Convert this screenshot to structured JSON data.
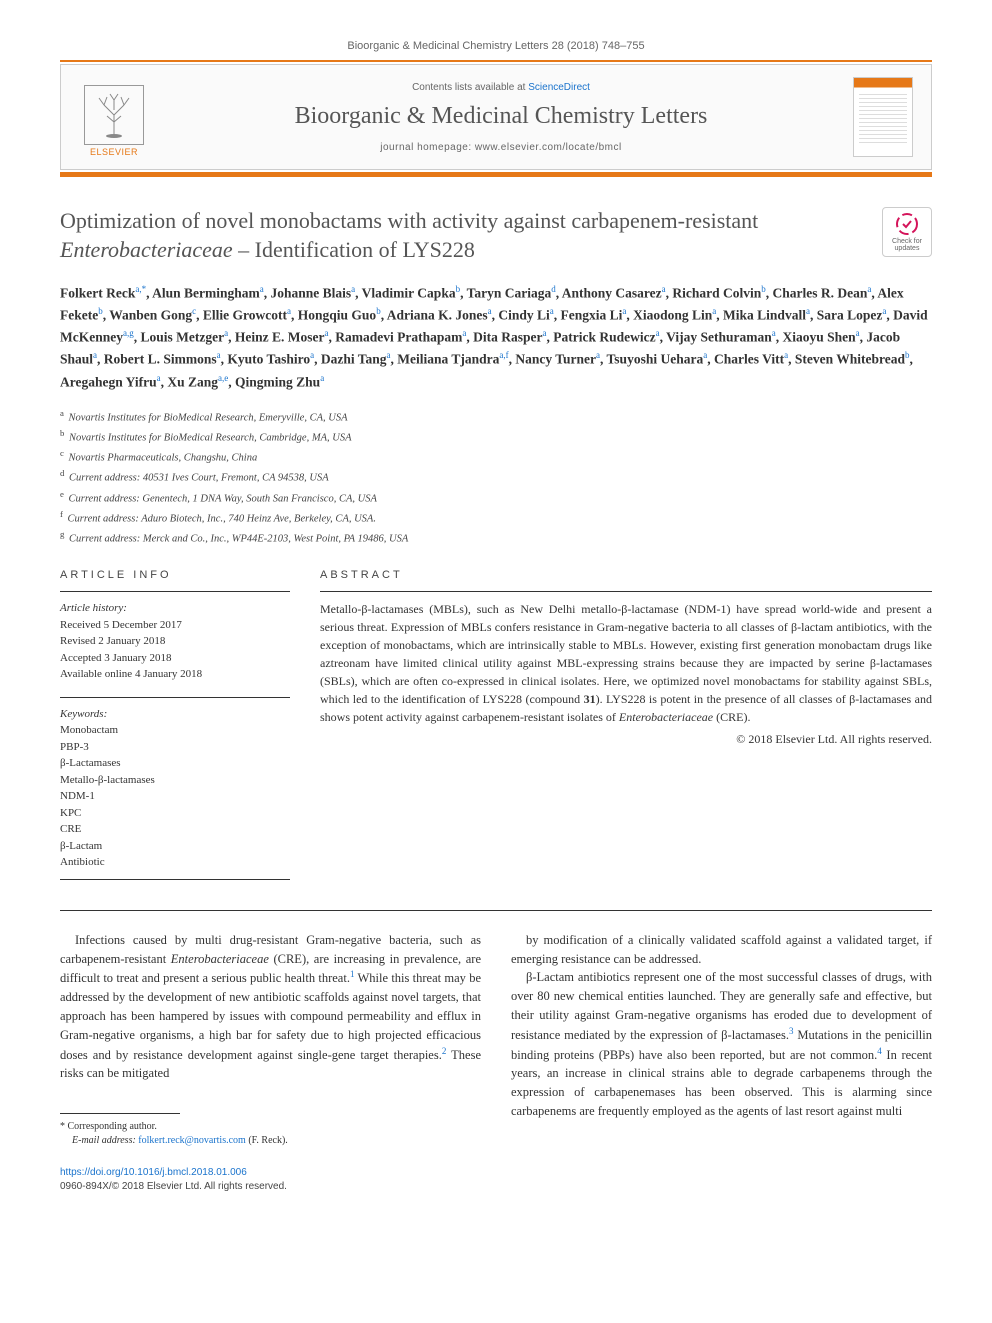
{
  "journal_ref": "Bioorganic & Medicinal Chemistry Letters 28 (2018) 748–755",
  "header": {
    "contents_prefix": "Contents lists available at ",
    "contents_link": "ScienceDirect",
    "journal_name": "Bioorganic & Medicinal Chemistry Letters",
    "homepage_label": "journal homepage: ",
    "homepage_url": "www.elsevier.com/locate/bmcl",
    "elsevier": "ELSEVIER"
  },
  "check_updates": "Check for updates",
  "title_html": "Optimization of novel monobactams with activity against carbapenem-resistant <em>Enterobacteriaceae</em> – Identification of LYS228",
  "authors_html": "Folkert Reck<sup>a,*</sup>, Alun Bermingham<sup>a</sup>, Johanne Blais<sup>a</sup>, Vladimir Capka<sup>b</sup>, Taryn Cariaga<sup>d</sup>, Anthony Casarez<sup>a</sup>, Richard Colvin<sup>b</sup>, Charles R. Dean<sup>a</sup>, Alex Fekete<sup>b</sup>, Wanben Gong<sup>c</sup>, Ellie Growcott<sup>a</sup>, Hongqiu Guo<sup>b</sup>, Adriana K. Jones<sup>a</sup>, Cindy Li<sup>a</sup>, Fengxia Li<sup>a</sup>, Xiaodong Lin<sup>a</sup>, Mika Lindvall<sup>a</sup>, Sara Lopez<sup>a</sup>, David McKenney<sup>a,g</sup>, Louis Metzger<sup>a</sup>, Heinz E. Moser<sup>a</sup>, Ramadevi Prathapam<sup>a</sup>, Dita Rasper<sup>a</sup>, Patrick Rudewicz<sup>a</sup>, Vijay Sethuraman<sup>a</sup>, Xiaoyu Shen<sup>a</sup>, Jacob Shaul<sup>a</sup>, Robert L. Simmons<sup>a</sup>, Kyuto Tashiro<sup>a</sup>, Dazhi Tang<sup>a</sup>, Meiliana Tjandra<sup>a,f</sup>, Nancy Turner<sup>a</sup>, Tsuyoshi Uehara<sup>a</sup>, Charles Vitt<sup>a</sup>, Steven Whitebread<sup>b</sup>, Aregahegn Yifru<sup>a</sup>, Xu Zang<sup>a,e</sup>, Qingming Zhu<sup>a</sup>",
  "affiliations": [
    {
      "sup": "a",
      "text": "Novartis Institutes for BioMedical Research, Emeryville, CA, USA"
    },
    {
      "sup": "b",
      "text": "Novartis Institutes for BioMedical Research, Cambridge, MA, USA"
    },
    {
      "sup": "c",
      "text": "Novartis Pharmaceuticals, Changshu, China"
    },
    {
      "sup": "d",
      "text": "Current address: 40531 Ives Court, Fremont, CA 94538, USA"
    },
    {
      "sup": "e",
      "text": "Current address: Genentech, 1 DNA Way, South San Francisco, CA, USA"
    },
    {
      "sup": "f",
      "text": "Current address: Aduro Biotech, Inc., 740 Heinz Ave, Berkeley, CA, USA."
    },
    {
      "sup": "g",
      "text": "Current address: Merck and Co., Inc., WP44E-2103, West Point, PA 19486, USA"
    }
  ],
  "info": {
    "heading": "ARTICLE INFO",
    "history_label": "Article history:",
    "history": [
      "Received 5 December 2017",
      "Revised 2 January 2018",
      "Accepted 3 January 2018",
      "Available online 4 January 2018"
    ],
    "keywords_label": "Keywords:",
    "keywords": [
      "Monobactam",
      "PBP-3",
      "β-Lactamases",
      "Metallo-β-lactamases",
      "NDM-1",
      "KPC",
      "CRE",
      "β-Lactam",
      "Antibiotic"
    ]
  },
  "abstract": {
    "heading": "ABSTRACT",
    "text_html": "Metallo-β-lactamases (MBLs), such as New Delhi metallo-β-lactamase (NDM-1) have spread world-wide and present a serious threat. Expression of MBLs confers resistance in Gram-negative bacteria to all classes of β-lactam antibiotics, with the exception of monobactams, which are intrinsically stable to MBLs. However, existing first generation monobactam drugs like aztreonam have limited clinical utility against MBL-expressing strains because they are impacted by serine β-lactamases (SBLs), which are often co-expressed in clinical isolates. Here, we optimized novel monobactams for stability against SBLs, which led to the identification of LYS228 (compound <b>31</b>). LYS228 is potent in the presence of all classes of β-lactamases and shows potent activity against carbapenem-resistant isolates of <em>Enterobacteriaceae</em> (CRE).",
    "copyright": "© 2018 Elsevier Ltd. All rights reserved."
  },
  "body": {
    "p1_html": "Infections caused by multi drug-resistant Gram-negative bacteria, such as carbapenem-resistant <em>Enterobacteriaceae</em> (CRE), are increasing in prevalence, are difficult to treat and present a serious public health threat.<sup>1</sup> While this threat may be addressed by the development of new antibiotic scaffolds against novel targets, that approach has been hampered by issues with compound permeability and efflux in Gram-negative organisms, a high bar for safety due to high projected efficacious doses and by resistance development against single-gene target therapies.<sup>2</sup> These risks can be mitigated",
    "p2_html": "by modification of a clinically validated scaffold against a validated target, if emerging resistance can be addressed.",
    "p3_html": "β-Lactam antibiotics represent one of the most successful classes of drugs, with over 80 new chemical entities launched. They are generally safe and effective, but their utility against Gram-negative organisms has eroded due to development of resistance mediated by the expression of β-lactamases.<sup>3</sup> Mutations in the penicillin binding proteins (PBPs) have also been reported, but are not common.<sup>4</sup> In recent years, an increase in clinical strains able to degrade carbapenems through the expression of carbapenemases has been observed. This is alarming since carbapenems are frequently employed as the agents of last resort against multi"
  },
  "footer": {
    "corresponding": "* Corresponding author.",
    "email_label": "E-mail address: ",
    "email": "folkert.reck@novartis.com",
    "email_suffix": " (F. Reck).",
    "doi": "https://doi.org/10.1016/j.bmcl.2018.01.006",
    "issn_line": "0960-894X/© 2018 Elsevier Ltd. All rights reserved."
  },
  "colors": {
    "orange": "#e67817",
    "link": "#1a73cc",
    "text": "#333333"
  }
}
